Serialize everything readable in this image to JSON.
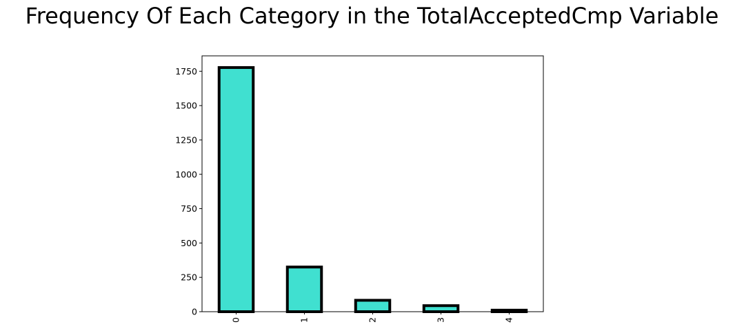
{
  "title": "Frequency Of Each Category in the TotalAcceptedCmp Variable",
  "colors": {
    "bar_fill": "#40E0D0",
    "bar_edge": "#000000",
    "axes": "#000000"
  },
  "chart_data": {
    "type": "bar",
    "title": "Frequency Of Each Category in the TotalAcceptedCmp Variable",
    "xlabel": "",
    "ylabel": "",
    "categories": [
      "0",
      "1",
      "2",
      "3",
      "4"
    ],
    "values": [
      1777,
      325,
      83,
      44,
      11
    ],
    "ylim": [
      0,
      1862
    ],
    "yticks": [
      0,
      250,
      500,
      750,
      1000,
      1250,
      1500,
      1750
    ],
    "xtick_rotation": "vertical",
    "grid": false,
    "legend": "none"
  }
}
